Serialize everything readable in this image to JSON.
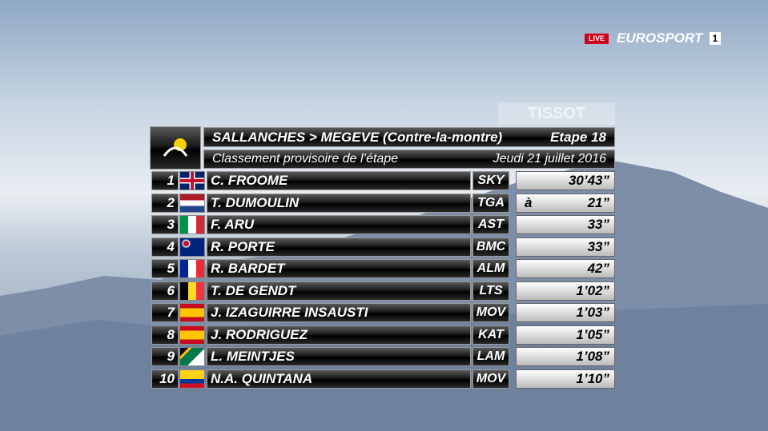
{
  "broadcast": {
    "live": "LIVE",
    "channel": "EUROSPORT",
    "channel_number": "1",
    "sponsor": "TISSOT"
  },
  "header": {
    "title": "SALLANCHES > MEGEVE (Contre-la-montre)",
    "stage": "Etape 18",
    "subtitle": "Classement provisoire de l’étape",
    "date": "Jeudi 21 juillet 2016"
  },
  "rows": [
    {
      "rank": 1,
      "name": "C. FROOME",
      "team": "SKY",
      "time": "30’43”"
    },
    {
      "rank": 2,
      "name": "T. DUMOULIN",
      "team": "TGA",
      "prefix": "à",
      "time": "21”"
    },
    {
      "rank": 3,
      "name": "F. ARU",
      "team": "AST",
      "time": "33”"
    },
    {
      "rank": 4,
      "name": "R. PORTE",
      "team": "BMC",
      "time": "33”"
    },
    {
      "rank": 5,
      "name": "R. BARDET",
      "team": "ALM",
      "time": "42”"
    },
    {
      "rank": 6,
      "name": "T. DE GENDT",
      "team": "LTS",
      "time": "1’02”"
    },
    {
      "rank": 7,
      "name": "J. IZAGUIRRE INSAUSTI",
      "team": "MOV",
      "time": "1’03”"
    },
    {
      "rank": 8,
      "name": "J. RODRIGUEZ",
      "team": "KAT",
      "time": "1’05”"
    },
    {
      "rank": 9,
      "name": "L. MEINTJES",
      "team": "LAM",
      "time": "1’08”"
    },
    {
      "rank": 10,
      "name": "N.A. QUINTANA",
      "team": "MOV",
      "time": "1’10”"
    }
  ]
}
